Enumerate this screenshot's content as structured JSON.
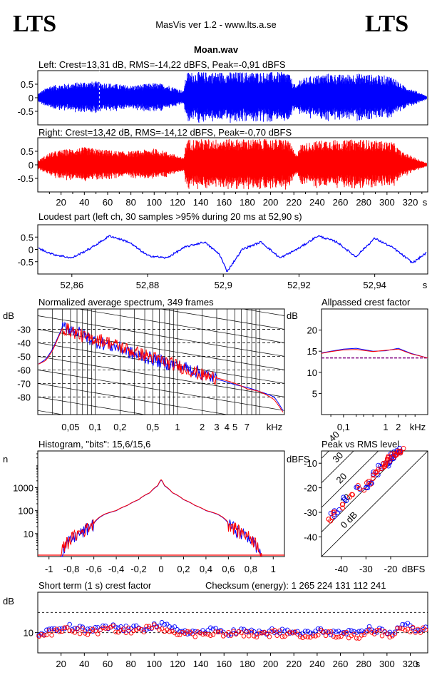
{
  "header": {
    "logo_left": "LTS",
    "logo_right": "LTS",
    "app_title": "MasVis ver 1.2 - www.lts.a.se",
    "file_name": "Moan.wav"
  },
  "colors": {
    "left": "#0000ff",
    "right": "#ff0000",
    "axis": "#000000",
    "ref": "#800080"
  },
  "chart_data": [
    {
      "id": "left",
      "type": "area",
      "title": "Left: Crest=13,31 dB, RMS=-14,22 dBFS, Peak=-0,91 dBFS",
      "ytick_labels": [
        "0.5",
        "0",
        "-0.5"
      ],
      "yticks": [
        0.5,
        0,
        -0.5
      ],
      "ylim": [
        -1,
        1
      ],
      "xlim": [
        0,
        335
      ],
      "crest_db": 13.31,
      "rms_dbfs": -14.22,
      "peak_dbfs": -0.91,
      "marker_x": 52.9,
      "envelope": {
        "x": [
          0,
          5,
          10,
          20,
          30,
          40,
          50,
          60,
          70,
          80,
          90,
          100,
          110,
          120,
          125,
          128,
          140,
          160,
          180,
          200,
          215,
          222,
          225,
          235,
          250,
          262,
          275,
          290,
          305,
          312,
          320,
          330,
          335
        ],
        "amp": [
          0.15,
          0.3,
          0.45,
          0.5,
          0.55,
          0.6,
          0.6,
          0.55,
          0.5,
          0.45,
          0.5,
          0.55,
          0.5,
          0.35,
          0.25,
          0.95,
          0.95,
          0.95,
          0.95,
          0.95,
          0.95,
          0.4,
          0.7,
          0.8,
          0.9,
          0.85,
          0.9,
          0.85,
          0.8,
          0.5,
          0.35,
          0.15,
          0.05
        ]
      }
    },
    {
      "id": "right",
      "type": "area",
      "title": "Right: Crest=13,42 dB, RMS=-14,12 dBFS, Peak=-0,70 dBFS",
      "ytick_labels": [
        "0.5",
        "0",
        "-0.5"
      ],
      "yticks": [
        0.5,
        0,
        -0.5
      ],
      "ylim": [
        -1,
        1
      ],
      "xlim": [
        0,
        335
      ],
      "crest_db": 13.42,
      "rms_dbfs": -14.12,
      "peak_dbfs": -0.7,
      "xtick_labels": [
        "20",
        "40",
        "60",
        "80",
        "100",
        "120",
        "140",
        "160",
        "180",
        "200",
        "220",
        "240",
        "260",
        "280",
        "300",
        "320",
        "s"
      ],
      "envelope": {
        "x": [
          0,
          5,
          10,
          20,
          30,
          40,
          50,
          60,
          70,
          80,
          90,
          100,
          110,
          120,
          125,
          128,
          140,
          160,
          180,
          200,
          215,
          222,
          225,
          235,
          250,
          262,
          275,
          290,
          305,
          312,
          320,
          330,
          335
        ],
        "amp": [
          0.15,
          0.3,
          0.45,
          0.55,
          0.6,
          0.65,
          0.6,
          0.55,
          0.5,
          0.5,
          0.55,
          0.6,
          0.5,
          0.35,
          0.25,
          0.95,
          0.95,
          0.95,
          0.95,
          0.95,
          0.95,
          0.35,
          0.75,
          0.85,
          0.95,
          0.9,
          0.95,
          0.9,
          0.85,
          0.5,
          0.35,
          0.15,
          0.05
        ]
      }
    },
    {
      "id": "loudest",
      "type": "line",
      "title": "Loudest part (left  ch, 30 samples >95% during 20 ms at 52,90 s)",
      "ytick_labels": [
        "0.5",
        "0",
        "-0.5"
      ],
      "yticks": [
        0.5,
        0,
        -0.5
      ],
      "ylim": [
        -1,
        1
      ],
      "xlim": [
        52.851,
        52.954
      ],
      "xticks": [
        52.86,
        52.88,
        52.9,
        52.92,
        52.94
      ],
      "xtick_labels": [
        "52,86",
        "52,88",
        "52,9",
        "52,92",
        "52,94",
        "s"
      ],
      "x": [
        52.851,
        52.855,
        52.86,
        52.865,
        52.87,
        52.875,
        52.88,
        52.885,
        52.89,
        52.895,
        52.899,
        52.901,
        52.905,
        52.91,
        52.915,
        52.92,
        52.925,
        52.93,
        52.935,
        52.94,
        52.945,
        52.95,
        52.954
      ],
      "y": [
        0.05,
        -0.2,
        -0.35,
        0.05,
        0.55,
        0.3,
        -0.25,
        -0.35,
        0.1,
        0.3,
        -0.2,
        -0.9,
        0.0,
        0.3,
        -0.35,
        0.05,
        0.55,
        0.3,
        -0.3,
        0.45,
        0.05,
        -0.55,
        -0.1
      ]
    },
    {
      "id": "spectrum",
      "type": "line",
      "title": "Normalized average spectrum, 349 frames",
      "ylabel": "dB",
      "xlabel": "kHz",
      "ylim": [
        -93,
        -15
      ],
      "yticks": [
        -30,
        -40,
        -50,
        -60,
        -70,
        -80
      ],
      "ytick_labels": [
        "-30",
        "-40",
        "-50",
        "-60",
        "-70",
        "-80"
      ],
      "xlim": [
        0.02,
        20
      ],
      "xscale": "log",
      "xticks": [
        0.05,
        0.1,
        0.2,
        0.5,
        1,
        2,
        3,
        4,
        5,
        7
      ],
      "xtick_labels": [
        "0,05",
        "0,1",
        "0,2",
        "0,5",
        "1",
        "2",
        "3",
        "4",
        "5",
        "7",
        "kHz"
      ],
      "x": [
        0.02,
        0.025,
        0.03,
        0.035,
        0.04,
        0.05,
        0.06,
        0.08,
        0.1,
        0.15,
        0.2,
        0.3,
        0.5,
        0.7,
        1,
        1.5,
        2,
        3,
        5,
        7,
        10,
        15,
        20
      ],
      "series": [
        {
          "color": "blue",
          "values": [
            -56,
            -52,
            -45,
            -36,
            -28,
            -30,
            -32,
            -36,
            -39,
            -42,
            -44,
            -49,
            -52,
            -55,
            -57,
            -60,
            -63,
            -67,
            -71,
            -73,
            -76,
            -80,
            -92
          ]
        },
        {
          "color": "red",
          "values": [
            -56,
            -53,
            -46,
            -37,
            -29,
            -31,
            -33,
            -37,
            -37,
            -40,
            -43,
            -47,
            -51,
            -54,
            -57,
            -61,
            -64,
            -66,
            -70,
            -74,
            -76,
            -82,
            -93
          ]
        }
      ]
    },
    {
      "id": "allpassed_crest",
      "type": "line",
      "title": "Allpassed crest factor",
      "ylabel": "dB",
      "xlabel": "kHz",
      "ylim": [
        0,
        25
      ],
      "yticks": [
        5,
        10,
        15,
        20
      ],
      "ytick_labels": [
        "5",
        "10",
        "15",
        "20"
      ],
      "xlim": [
        0.03,
        10
      ],
      "xscale": "log",
      "xticks": [
        0.1,
        1,
        2
      ],
      "xtick_labels": [
        "0,1",
        "1",
        "2",
        "kHz"
      ],
      "x": [
        0.03,
        0.05,
        0.1,
        0.2,
        0.5,
        1,
        2,
        4,
        10
      ],
      "series": [
        {
          "color": "blue",
          "values": [
            14.6,
            15,
            15.5,
            15.7,
            15,
            15.1,
            15.7,
            14.5,
            13.4
          ]
        },
        {
          "color": "red",
          "values": [
            14.5,
            14.9,
            15.3,
            15.4,
            14.9,
            15.2,
            15.5,
            14.4,
            13.4
          ]
        }
      ],
      "reference": 13.4
    },
    {
      "id": "histogram",
      "type": "line",
      "title": "Histogram, \"bits\": 15,6/15,6",
      "ylabel": "n",
      "ylim": [
        1,
        40000
      ],
      "yscale": "log",
      "yticks": [
        10,
        100,
        1000
      ],
      "ytick_labels": [
        "10",
        "100",
        "1000"
      ],
      "xlim": [
        -1.1,
        1.1
      ],
      "xticks": [
        -1,
        -0.8,
        -0.6,
        -0.4,
        -0.2,
        0,
        0.2,
        0.4,
        0.6,
        0.8,
        1
      ],
      "xtick_labels": [
        "-1",
        "-0,8",
        "-0,6",
        "-0,4",
        "-0,2",
        "0",
        "0,2",
        "0,4",
        "0,6",
        "0,8",
        "1"
      ],
      "x": [
        -0.9,
        -0.85,
        -0.8,
        -0.7,
        -0.6,
        -0.55,
        -0.5,
        -0.4,
        -0.3,
        -0.2,
        -0.1,
        -0.03,
        0,
        0.03,
        0.1,
        0.2,
        0.3,
        0.4,
        0.5,
        0.55,
        0.6,
        0.7,
        0.8,
        0.85,
        0.9
      ],
      "series": [
        {
          "color": "blue",
          "values": [
            1,
            3,
            6,
            12,
            28,
            50,
            70,
            100,
            170,
            300,
            600,
            1200,
            2200,
            1200,
            600,
            300,
            170,
            100,
            70,
            50,
            28,
            12,
            6,
            3,
            1
          ]
        },
        {
          "color": "red",
          "values": [
            1,
            4,
            7,
            13,
            30,
            52,
            72,
            102,
            172,
            305,
            610,
            1250,
            2300,
            1250,
            610,
            305,
            172,
            102,
            72,
            52,
            30,
            13,
            7,
            4,
            1
          ]
        }
      ]
    },
    {
      "id": "peak_vs_rms",
      "type": "scatter",
      "title": "Peak vs RMS level",
      "ylabel": "dBFS",
      "xlabel": "dBFS",
      "xlim": [
        -48,
        -5
      ],
      "ylim": [
        -48,
        -5
      ],
      "xticks": [
        -40,
        -30,
        -20
      ],
      "xtick_labels": [
        "-40",
        "-30",
        "-20",
        "dBFS"
      ],
      "yticks": [
        -10,
        -20,
        -30,
        -40
      ],
      "ytick_labels": [
        "-10",
        "-20",
        "-30",
        "-40"
      ],
      "crest_line_labels": [
        "40",
        "30",
        "20",
        "10",
        "0 dB"
      ],
      "crest_lines_db": [
        40,
        30,
        20,
        10,
        0
      ],
      "series": [
        {
          "color": "blue",
          "x": [
            -44,
            -42,
            -38,
            -33,
            -30,
            -28,
            -26,
            -24,
            -22,
            -21,
            -20,
            -19,
            -18,
            -17,
            -16
          ],
          "y": [
            -31,
            -29,
            -24,
            -21,
            -19,
            -17,
            -14,
            -12,
            -10,
            -9,
            -8,
            -7,
            -6,
            -6,
            -5
          ]
        },
        {
          "color": "red",
          "x": [
            -45,
            -43,
            -40,
            -36,
            -32,
            -29,
            -27,
            -25,
            -23,
            -22,
            -21,
            -20,
            -19,
            -18,
            -17,
            -16
          ],
          "y": [
            -33,
            -31,
            -27,
            -23,
            -20,
            -18,
            -15,
            -13,
            -11,
            -10,
            -9,
            -8,
            -7,
            -6,
            -6,
            -5
          ]
        }
      ]
    },
    {
      "id": "short_term_crest",
      "type": "scatter",
      "title": "Short term (1 s) crest factor",
      "checksum_text": "Checksum (energy):  1 265 224 131 112 241",
      "ylabel": "dB",
      "ylim": [
        0,
        30
      ],
      "yticks": [
        10
      ],
      "ytick_labels": [
        "10"
      ],
      "dashed_lines": [
        10,
        20
      ],
      "xlim": [
        0,
        335
      ],
      "xtick_labels": [
        "20",
        "40",
        "60",
        "80",
        "100",
        "120",
        "140",
        "160",
        "180",
        "200",
        "220",
        "240",
        "260",
        "280",
        "300",
        "320",
        "s"
      ],
      "series": [
        {
          "color": "blue",
          "x": [
            5,
            15,
            25,
            35,
            45,
            55,
            65,
            75,
            85,
            95,
            105,
            115,
            125,
            135,
            145,
            155,
            165,
            175,
            185,
            195,
            205,
            215,
            225,
            235,
            245,
            255,
            265,
            275,
            285,
            295,
            305,
            315,
            325
          ],
          "y": [
            10,
            11,
            13,
            12,
            11,
            12,
            13,
            12,
            12,
            13,
            14,
            12,
            11,
            10,
            11,
            11,
            10,
            11,
            10,
            10,
            11,
            10,
            10,
            10,
            11,
            10,
            10,
            9,
            12,
            11,
            10,
            14,
            12
          ]
        },
        {
          "color": "red",
          "x": [
            4,
            14,
            24,
            34,
            44,
            54,
            64,
            74,
            84,
            94,
            104,
            114,
            124,
            134,
            144,
            154,
            164,
            174,
            184,
            194,
            204,
            214,
            224,
            234,
            244,
            254,
            264,
            274,
            284,
            294,
            304,
            314,
            324
          ],
          "y": [
            9,
            10,
            12,
            11,
            10,
            11,
            12,
            11,
            11,
            12,
            13,
            11,
            10,
            9,
            10,
            10,
            9,
            10,
            9,
            9,
            10,
            9,
            9,
            9,
            10,
            9,
            9,
            8,
            11,
            10,
            9,
            13,
            11
          ]
        }
      ]
    }
  ]
}
